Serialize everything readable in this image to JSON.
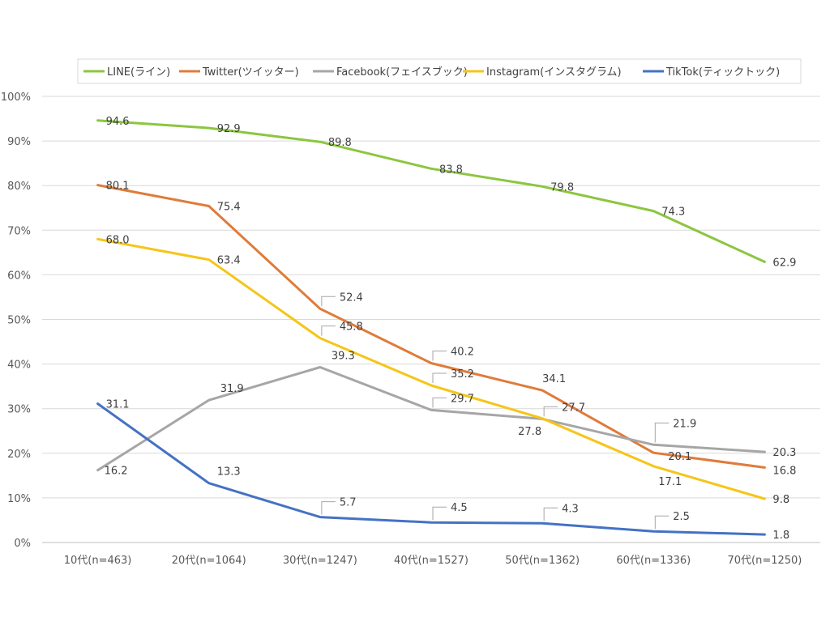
{
  "chart_data": {
    "type": "line",
    "categories": [
      "10代(n=463)",
      "20代(n=1064)",
      "30代(n=1247)",
      "40代(n=1527)",
      "50代(n=1362)",
      "60代(n=1336)",
      "70代(n=1250)"
    ],
    "y_ticks": [
      "0%",
      "10%",
      "20%",
      "30%",
      "40%",
      "50%",
      "60%",
      "70%",
      "80%",
      "90%",
      "100%"
    ],
    "ylim": [
      0,
      100
    ],
    "grid": true,
    "legend": "top",
    "series": [
      {
        "name": "LINE(ライン)",
        "color": "#8cc63f",
        "values": [
          94.6,
          92.9,
          89.8,
          83.8,
          79.8,
          74.3,
          62.9
        ],
        "labels": [
          "94.6",
          "92.9",
          "89.8",
          "83.8",
          "79.8",
          "74.3",
          "62.9"
        ]
      },
      {
        "name": "Twitter(ツイッター)",
        "color": "#e07b39",
        "values": [
          80.1,
          75.4,
          52.4,
          40.2,
          34.1,
          20.1,
          16.8
        ],
        "labels": [
          "80.1",
          "75.4",
          "52.4",
          "40.2",
          "34.1",
          "20.1",
          "16.8"
        ]
      },
      {
        "name": "Facebook(フェイスブック)",
        "color": "#a6a6a6",
        "values": [
          16.2,
          31.9,
          39.3,
          29.7,
          27.7,
          21.9,
          20.3
        ],
        "labels": [
          "16.2",
          "31.9",
          "39.3",
          "29.7",
          "27.7",
          "21.9",
          "20.3"
        ]
      },
      {
        "name": "Instagram(インスタグラム)",
        "color": "#f5c518",
        "values": [
          68.0,
          63.4,
          45.8,
          35.2,
          27.8,
          17.1,
          9.8
        ],
        "labels": [
          "68.0",
          "63.4",
          "45.8",
          "35.2",
          "27.8",
          "17.1",
          "9.8"
        ]
      },
      {
        "name": "TikTok(ティックトック)",
        "color": "#4472c4",
        "values": [
          31.1,
          13.3,
          5.7,
          4.5,
          4.3,
          2.5,
          1.8
        ],
        "labels": [
          "31.1",
          "13.3",
          "5.7",
          "4.5",
          "4.3",
          "2.5",
          "1.8"
        ]
      }
    ]
  }
}
